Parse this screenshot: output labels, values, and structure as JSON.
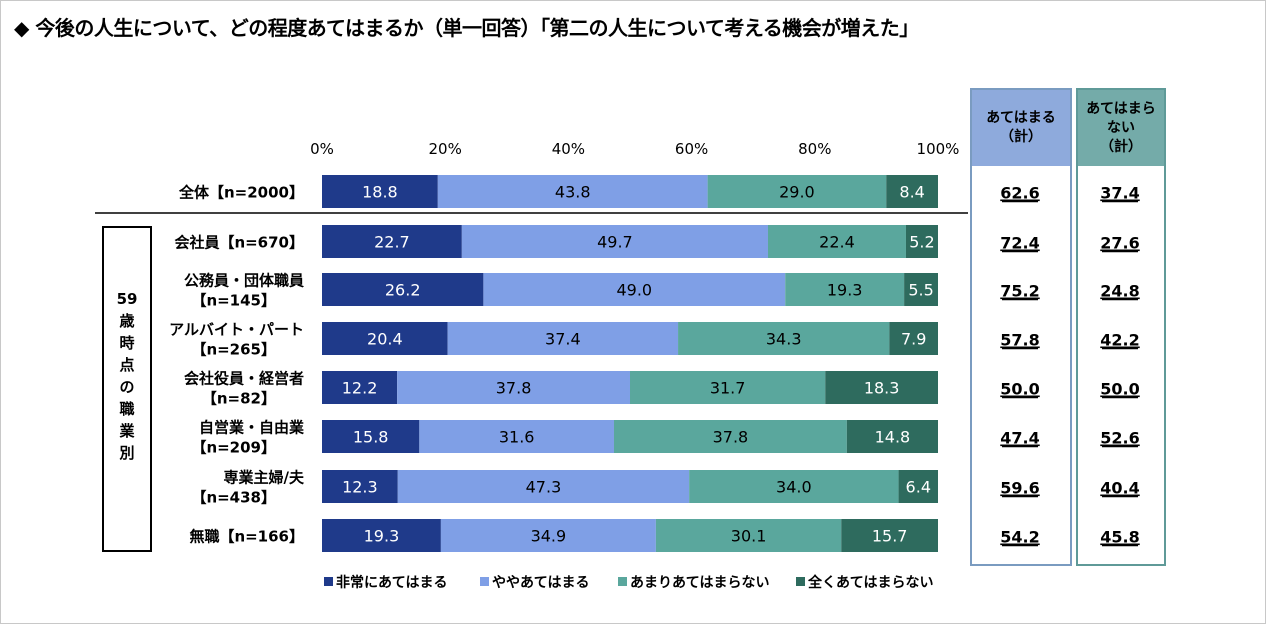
{
  "title": "◆ 今後の人生について、どの程度あてはまるか（単一回答）「第二の人生について考える機会が増えた」",
  "group_label": [
    "59",
    "歳",
    "時",
    "点",
    "の",
    "職",
    "業",
    "別"
  ],
  "summary_headers": {
    "applies": [
      "あてはまる",
      "（計）"
    ],
    "not_applies": [
      "あてはまら",
      "ない",
      "（計）"
    ]
  },
  "colors": {
    "series": [
      "#1f3a8a",
      "#7f9fe6",
      "#5aa79d",
      "#2e6b5e"
    ],
    "label_text": [
      "#ffffff",
      "#000000",
      "#000000",
      "#ffffff"
    ]
  },
  "chart_data": {
    "type": "bar",
    "orientation": "horizontal-stacked-100",
    "xlim": [
      0,
      100
    ],
    "x_ticks": [
      "0%",
      "20%",
      "40%",
      "60%",
      "80%",
      "100%"
    ],
    "categories": [
      [
        "全体【n=2000】"
      ],
      [
        "会社員【n=670】"
      ],
      [
        "公務員・団体職員",
        "【n=145】"
      ],
      [
        "アルバイト・パート",
        "【n=265】"
      ],
      [
        "会社役員・経営者",
        "【n=82】"
      ],
      [
        "自営業・自由業",
        "【n=209】"
      ],
      [
        "専業主婦/夫",
        "【n=438】"
      ],
      [
        "無職【n=166】"
      ]
    ],
    "series": [
      {
        "name": "非常にあてはまる",
        "values": [
          18.8,
          22.7,
          26.2,
          20.4,
          12.2,
          15.8,
          12.3,
          19.3
        ]
      },
      {
        "name": "ややあてはまる",
        "values": [
          43.8,
          49.7,
          49.0,
          37.4,
          37.8,
          31.6,
          47.3,
          34.9
        ]
      },
      {
        "name": "あまりあてはまらない",
        "values": [
          29.0,
          22.4,
          19.3,
          34.3,
          31.7,
          37.8,
          34.0,
          30.1
        ]
      },
      {
        "name": "全くあてはまらない",
        "values": [
          8.4,
          5.2,
          5.5,
          7.9,
          18.3,
          14.8,
          6.4,
          15.7
        ]
      }
    ],
    "labels": [
      [
        "18.8",
        "43.8",
        "29.0",
        "8.4"
      ],
      [
        "22.7",
        "49.7",
        "22.4",
        "5.2"
      ],
      [
        "26.2",
        "49.0",
        "19.3",
        "5.5"
      ],
      [
        "20.4",
        "37.4",
        "34.3",
        "7.9"
      ],
      [
        "12.2",
        "37.8",
        "31.7",
        "18.3"
      ],
      [
        "15.8",
        "31.6",
        "37.8",
        "14.8"
      ],
      [
        "12.3",
        "47.3",
        "34.0",
        "6.4"
      ],
      [
        "19.3",
        "34.9",
        "30.1",
        "15.7"
      ]
    ],
    "summary_applies": [
      "62.6",
      "72.4",
      "75.2",
      "57.8",
      "50.0",
      "47.4",
      "59.6",
      "54.2"
    ],
    "summary_not_applies": [
      "37.4",
      "27.6",
      "24.8",
      "42.2",
      "50.0",
      "52.6",
      "40.4",
      "45.8"
    ],
    "legend_position": "bottom"
  }
}
